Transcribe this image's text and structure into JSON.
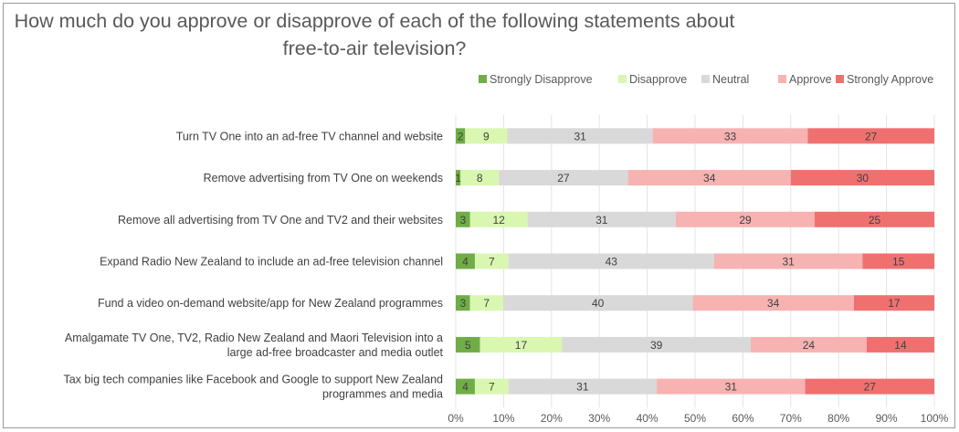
{
  "chart_data": {
    "type": "bar",
    "orientation": "horizontal",
    "stacked": true,
    "title": "How much do you approve or disapprove of each of the following statements about free-to-air television?",
    "categories": [
      "Turn TV One into an ad-free TV channel and website",
      "Remove advertising from TV One on weekends",
      "Remove all advertising from TV One and TV2 and their websites",
      "Expand Radio New Zealand to include an ad-free television channel",
      "Fund a video on-demand website/app for New Zealand programmes",
      "Amalgamate TV One, TV2, Radio New Zealand and Maori Television into a large ad-free broadcaster and media outlet",
      "Tax big tech companies like Facebook and Google to support New Zealand programmes and media"
    ],
    "category_lines": [
      [
        "Turn TV One into an ad-free TV channel and website"
      ],
      [
        "Remove advertising from TV One on weekends"
      ],
      [
        "Remove all advertising from TV One and TV2 and their websites"
      ],
      [
        "Expand Radio New Zealand to include an ad-free television channel"
      ],
      [
        "Fund a video on-demand website/app for New Zealand programmes"
      ],
      [
        "Amalgamate TV One, TV2, Radio New Zealand and Maori Television into a",
        "large ad-free broadcaster and media outlet"
      ],
      [
        "Tax big tech companies like Facebook and Google to support New Zealand",
        "programmes and media"
      ]
    ],
    "series": [
      {
        "name": "Strongly Disapprove",
        "color": "#70ad47",
        "values": [
          2,
          1,
          3,
          4,
          3,
          5,
          4
        ]
      },
      {
        "name": "Disapprove",
        "color": "#d9f7b0",
        "values": [
          9,
          8,
          12,
          7,
          7,
          17,
          7
        ]
      },
      {
        "name": "Neutral",
        "color": "#d9d9d9",
        "values": [
          31,
          27,
          31,
          43,
          40,
          39,
          31
        ]
      },
      {
        "name": "Approve",
        "color": "#f7b2b2",
        "values": [
          33,
          34,
          29,
          31,
          34,
          24,
          31
        ]
      },
      {
        "name": "Strongly Approve",
        "color": "#f07070",
        "values": [
          27,
          30,
          25,
          15,
          17,
          14,
          27
        ]
      }
    ],
    "xlim": [
      0,
      1
    ],
    "x_ticks": [
      "0%",
      "10%",
      "20%",
      "30%",
      "40%",
      "50%",
      "60%",
      "70%",
      "80%",
      "90%",
      "100%"
    ],
    "normalized": true,
    "grid": true,
    "legend_position": "top-right"
  }
}
